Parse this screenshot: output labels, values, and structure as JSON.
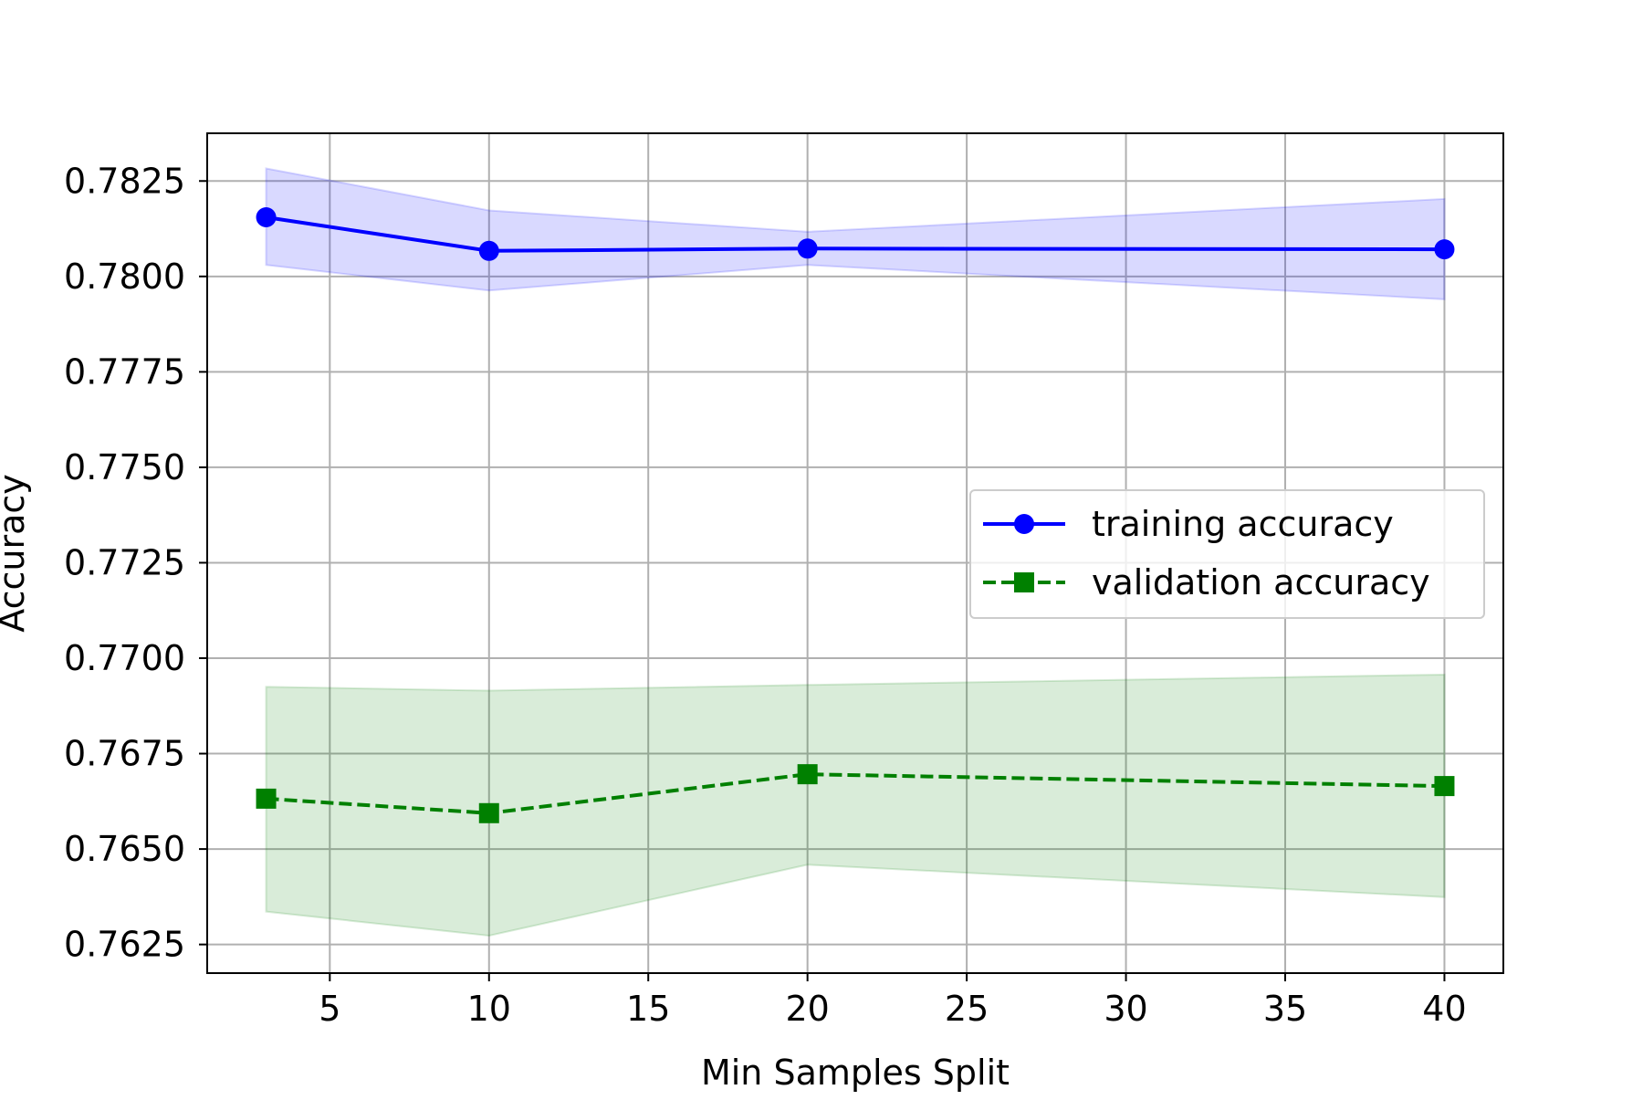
{
  "chart_data": {
    "type": "line",
    "title": "",
    "xlabel": "Min Samples Split",
    "ylabel": "Accuracy",
    "xlim": [
      1.15,
      41.85
    ],
    "ylim": [
      0.76175,
      0.78375
    ],
    "xticks": [
      5,
      10,
      15,
      20,
      25,
      30,
      35,
      40
    ],
    "yticks": [
      0.7625,
      0.765,
      0.7675,
      0.77,
      0.7725,
      0.775,
      0.7775,
      0.78,
      0.7825
    ],
    "ytick_labels": [
      "0.7625",
      "0.7650",
      "0.7675",
      "0.7700",
      "0.7725",
      "0.7750",
      "0.7775",
      "0.7800",
      "0.7825"
    ],
    "grid": true,
    "legend_position": "center-right",
    "x": [
      3,
      10,
      20,
      40
    ],
    "series": [
      {
        "name": "training accuracy",
        "values": [
          0.78155,
          0.78067,
          0.78073,
          0.78071
        ],
        "band_upper": [
          0.78283,
          0.78173,
          0.78117,
          0.78203
        ],
        "band_lower": [
          0.7803,
          0.77963,
          0.7803,
          0.7794
        ],
        "color": "#0000ff",
        "band_color": "#0000ff",
        "line_style": "solid",
        "marker": "circle"
      },
      {
        "name": "validation accuracy",
        "values": [
          0.76632,
          0.76594,
          0.76696,
          0.76665
        ],
        "band_upper": [
          0.76925,
          0.76915,
          0.7693,
          0.76957
        ],
        "band_lower": [
          0.76336,
          0.76273,
          0.76459,
          0.76374
        ],
        "color": "#008000",
        "band_color": "#008000",
        "line_style": "dashed",
        "marker": "square"
      }
    ]
  }
}
